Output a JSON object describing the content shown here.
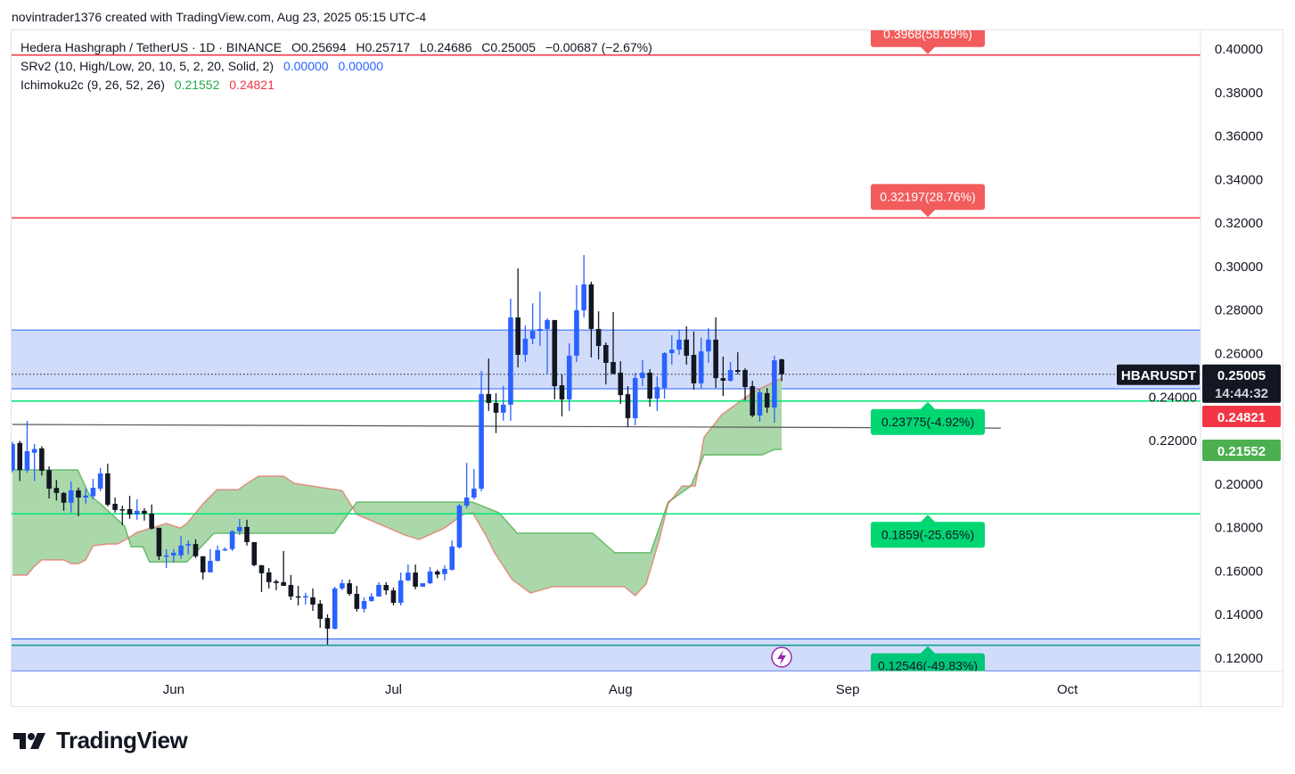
{
  "credit": "novintrader1376 created with TradingView.com, Aug 23, 2025 05:15 UTC-4",
  "legend": {
    "symbol": "Hedera Hashgraph / TetherUS · 1D · BINANCE",
    "open": "O0.25694",
    "high": "H0.25717",
    "low": "L0.24686",
    "close": "C0.25005",
    "change": "−0.00687 (−2.67%)",
    "srv2_label": "SRv2 (10, High/Low, 20, 10, 5, 2, 20, Solid, 2)",
    "srv2_v1": "0.00000",
    "srv2_v2": "0.00000",
    "ichimoku_label": "Ichimoku2c (9, 26, 52, 26)",
    "ichimoku_v1": "0.21552",
    "ichimoku_v2": "0.24821"
  },
  "logo": {
    "text": "TradingView"
  },
  "colors": {
    "up": "#2962ff",
    "down": "#131722",
    "cloud": "#a5d6a7",
    "span_a": "#66bb6a",
    "span_b": "#ef5350",
    "resistance": "#f23645",
    "support": "#00e676",
    "zone": "#d1dcfb",
    "zone_edge": "#2962ff",
    "trend": "#131722"
  },
  "chart_data": {
    "type": "candlestick",
    "title": "HBARUSDT 1D",
    "ylim": [
      0.1137,
      0.41
    ],
    "y_ticks": [
      "0.40000",
      "0.38000",
      "0.36000",
      "0.34000",
      "0.32000",
      "0.30000",
      "0.28000",
      "0.26000",
      "0.24000",
      "0.22000",
      "0.20000",
      "0.18000",
      "0.16000",
      "0.14000",
      "0.12000"
    ],
    "x_ticks": [
      {
        "label": "Jun",
        "day": 22
      },
      {
        "label": "Jul",
        "day": 52
      },
      {
        "label": "Aug",
        "day": 83
      },
      {
        "label": "Sep",
        "day": 114
      },
      {
        "label": "Oct",
        "day": 144
      }
    ],
    "first_day": "May 10",
    "candles": [
      [
        0.206,
        0.219,
        0.205,
        0.218
      ],
      [
        0.2185,
        0.2195,
        0.201,
        0.206
      ],
      [
        0.206,
        0.2286,
        0.2048,
        0.2147
      ],
      [
        0.214,
        0.218,
        0.201,
        0.2157
      ],
      [
        0.216,
        0.217,
        0.2035,
        0.2057
      ],
      [
        0.206,
        0.2077,
        0.193,
        0.1975
      ],
      [
        0.1978,
        0.2015,
        0.192,
        0.1955
      ],
      [
        0.1955,
        0.1959,
        0.1873,
        0.191
      ],
      [
        0.191,
        0.2008,
        0.1865,
        0.1967
      ],
      [
        0.1967,
        0.198,
        0.1848,
        0.1934
      ],
      [
        0.1934,
        0.1975,
        0.1906,
        0.1943
      ],
      [
        0.194,
        0.202,
        0.1926,
        0.1979
      ],
      [
        0.1975,
        0.207,
        0.1963,
        0.2045
      ],
      [
        0.2045,
        0.209,
        0.1893,
        0.1901
      ],
      [
        0.1905,
        0.1934,
        0.1865,
        0.1877
      ],
      [
        0.188,
        0.1897,
        0.1807,
        0.1877
      ],
      [
        0.1881,
        0.1942,
        0.1836,
        0.1856
      ],
      [
        0.1856,
        0.1926,
        0.1832,
        0.1873
      ],
      [
        0.1873,
        0.1885,
        0.1828,
        0.186
      ],
      [
        0.186,
        0.1902,
        0.1787,
        0.1791
      ],
      [
        0.1795,
        0.1795,
        0.1647,
        0.1664
      ],
      [
        0.1664,
        0.1697,
        0.161,
        0.1668
      ],
      [
        0.1668,
        0.1697,
        0.1635,
        0.168
      ],
      [
        0.1668,
        0.1758,
        0.1652,
        0.1713
      ],
      [
        0.1713,
        0.1737,
        0.1672,
        0.172
      ],
      [
        0.172,
        0.1742,
        0.1656,
        0.1664
      ],
      [
        0.1664,
        0.1664,
        0.1557,
        0.159
      ],
      [
        0.159,
        0.1697,
        0.159,
        0.1643
      ],
      [
        0.1643,
        0.1713,
        0.164,
        0.1692
      ],
      [
        0.1692,
        0.1705,
        0.1688,
        0.1697
      ],
      [
        0.1697,
        0.1783,
        0.1688,
        0.1779
      ],
      [
        0.1779,
        0.1836,
        0.1762,
        0.1799
      ],
      [
        0.1799,
        0.1832,
        0.1713,
        0.1729
      ],
      [
        0.1729,
        0.1729,
        0.1618,
        0.1623
      ],
      [
        0.1623,
        0.1623,
        0.15,
        0.1586
      ],
      [
        0.159,
        0.161,
        0.1516,
        0.1545
      ],
      [
        0.1549,
        0.1557,
        0.1508,
        0.1541
      ],
      [
        0.1545,
        0.1688,
        0.1528,
        0.1528
      ],
      [
        0.1532,
        0.1578,
        0.1463,
        0.1479
      ],
      [
        0.148,
        0.1528,
        0.1438,
        0.1478
      ],
      [
        0.1478,
        0.1496,
        0.1442,
        0.1481
      ],
      [
        0.1475,
        0.1516,
        0.1413,
        0.1442
      ],
      [
        0.1446,
        0.1462,
        0.1335,
        0.1376
      ],
      [
        0.138,
        0.1397,
        0.1258,
        0.1331
      ],
      [
        0.1331,
        0.1524,
        0.1327,
        0.1516
      ],
      [
        0.1516,
        0.1557,
        0.1508,
        0.154
      ],
      [
        0.154,
        0.1557,
        0.1483,
        0.1491
      ],
      [
        0.1491,
        0.1528,
        0.141,
        0.1422
      ],
      [
        0.1422,
        0.1475,
        0.1405,
        0.1458
      ],
      [
        0.1458,
        0.1495,
        0.1455,
        0.1479
      ],
      [
        0.1479,
        0.1545,
        0.1479,
        0.1532
      ],
      [
        0.1532,
        0.1545,
        0.1487,
        0.1507
      ],
      [
        0.1507,
        0.152,
        0.1438,
        0.145
      ],
      [
        0.145,
        0.1589,
        0.1438,
        0.1553
      ],
      [
        0.1553,
        0.1626,
        0.1549,
        0.1589
      ],
      [
        0.1589,
        0.1626,
        0.1512,
        0.1524
      ],
      [
        0.1524,
        0.154,
        0.1524,
        0.154
      ],
      [
        0.154,
        0.1614,
        0.1536,
        0.1594
      ],
      [
        0.1594,
        0.1602,
        0.1563,
        0.158
      ],
      [
        0.1582,
        0.1622,
        0.1553,
        0.1606
      ],
      [
        0.1602,
        0.1737,
        0.1598,
        0.1709
      ],
      [
        0.1705,
        0.1905,
        0.1699,
        0.1897
      ],
      [
        0.1897,
        0.2093,
        0.1885,
        0.1934
      ],
      [
        0.1934,
        0.2065,
        0.1925,
        0.1975
      ],
      [
        0.1975,
        0.2516,
        0.1963,
        0.241
      ],
      [
        0.241,
        0.2573,
        0.2332,
        0.2369
      ],
      [
        0.2369,
        0.2414,
        0.223,
        0.2324
      ],
      [
        0.2324,
        0.2447,
        0.2287,
        0.2361
      ],
      [
        0.2361,
        0.2848,
        0.2287,
        0.2762
      ],
      [
        0.2762,
        0.2987,
        0.2532,
        0.259
      ],
      [
        0.259,
        0.2725,
        0.2557,
        0.2664
      ],
      [
        0.2664,
        0.2827,
        0.2639,
        0.27
      ],
      [
        0.27,
        0.2881,
        0.2631,
        0.2709
      ],
      [
        0.2709,
        0.2758,
        0.25,
        0.275
      ],
      [
        0.275,
        0.275,
        0.2385,
        0.2446
      ],
      [
        0.245,
        0.25,
        0.2307,
        0.2385
      ],
      [
        0.2385,
        0.2643,
        0.2332,
        0.2586
      ],
      [
        0.2586,
        0.291,
        0.2557,
        0.2795
      ],
      [
        0.2795,
        0.3049,
        0.2762,
        0.2914
      ],
      [
        0.2914,
        0.2926,
        0.2578,
        0.2709
      ],
      [
        0.2709,
        0.279,
        0.2569,
        0.2631
      ],
      [
        0.2635,
        0.2647,
        0.2454,
        0.2553
      ],
      [
        0.2557,
        0.2787,
        0.25,
        0.2504
      ],
      [
        0.2508,
        0.2561,
        0.2365,
        0.2405
      ],
      [
        0.2409,
        0.2446,
        0.2258,
        0.2299
      ],
      [
        0.2299,
        0.2508,
        0.2266,
        0.2483
      ],
      [
        0.2483,
        0.2565,
        0.2446,
        0.2508
      ],
      [
        0.2508,
        0.2524,
        0.2352,
        0.2389
      ],
      [
        0.2389,
        0.2491,
        0.2332,
        0.2442
      ],
      [
        0.2438,
        0.2602,
        0.2389,
        0.2598
      ],
      [
        0.2598,
        0.268,
        0.2545,
        0.2614
      ],
      [
        0.2614,
        0.2705,
        0.259,
        0.266
      ],
      [
        0.266,
        0.2721,
        0.2545,
        0.2586
      ],
      [
        0.259,
        0.2697,
        0.243,
        0.2459
      ],
      [
        0.2459,
        0.2668,
        0.2434,
        0.2606
      ],
      [
        0.2606,
        0.2713,
        0.2553,
        0.266
      ],
      [
        0.266,
        0.2762,
        0.2438,
        0.2483
      ],
      [
        0.2483,
        0.2582,
        0.2401,
        0.2471
      ],
      [
        0.2471,
        0.2557,
        0.2467,
        0.252
      ],
      [
        0.252,
        0.2602,
        0.25,
        0.2512
      ],
      [
        0.252,
        0.2528,
        0.2381,
        0.2442
      ],
      [
        0.2446,
        0.2471,
        0.2303,
        0.2311
      ],
      [
        0.2311,
        0.243,
        0.2283,
        0.2418
      ],
      [
        0.2414,
        0.2438,
        0.2324,
        0.2348
      ],
      [
        0.2348,
        0.2586,
        0.2278,
        0.2565
      ],
      [
        0.25694,
        0.25717,
        0.24686,
        0.25005
      ]
    ],
    "ichimoku_span_a": [
      [
        0,
        0.2061
      ],
      [
        8.9,
        0.2061
      ],
      [
        10.5,
        0.1946
      ],
      [
        12,
        0.1905
      ],
      [
        15.3,
        0.1803
      ],
      [
        16.2,
        0.1708
      ],
      [
        17.8,
        0.1708
      ],
      [
        18.7,
        0.1638
      ],
      [
        23.8,
        0.1638
      ],
      [
        27.5,
        0.177
      ],
      [
        43.9,
        0.177
      ],
      [
        47,
        0.1913
      ],
      [
        62.8,
        0.1913
      ],
      [
        66.4,
        0.1864
      ],
      [
        68.9,
        0.177
      ],
      [
        79.2,
        0.177
      ],
      [
        82.2,
        0.168
      ],
      [
        87.1,
        0.168
      ],
      [
        89.5,
        0.1913
      ],
      [
        92.6,
        0.1987
      ],
      [
        94.4,
        0.213
      ],
      [
        102.3,
        0.213
      ],
      [
        104,
        0.2155
      ],
      [
        105,
        0.21552
      ]
    ],
    "ichimoku_span_b": [
      [
        0,
        0.1577
      ],
      [
        2,
        0.1577
      ],
      [
        3,
        0.1618
      ],
      [
        4,
        0.1647
      ],
      [
        7,
        0.1647
      ],
      [
        8,
        0.163
      ],
      [
        9,
        0.163
      ],
      [
        10,
        0.1647
      ],
      [
        11,
        0.1712
      ],
      [
        13,
        0.172
      ],
      [
        14.3,
        0.172
      ],
      [
        15.3,
        0.1737
      ],
      [
        17,
        0.1774
      ],
      [
        19,
        0.1794
      ],
      [
        21,
        0.1815
      ],
      [
        22.9,
        0.1794
      ],
      [
        23.8,
        0.1815
      ],
      [
        26,
        0.1905
      ],
      [
        27.9,
        0.197
      ],
      [
        30.8,
        0.197
      ],
      [
        32,
        0.1999
      ],
      [
        33.6,
        0.2032
      ],
      [
        37,
        0.2032
      ],
      [
        38.5,
        0.1999
      ],
      [
        45,
        0.1966
      ],
      [
        47,
        0.1856
      ],
      [
        53.6,
        0.1761
      ],
      [
        55.5,
        0.1741
      ],
      [
        59,
        0.1794
      ],
      [
        61.5,
        0.1856
      ],
      [
        62.8,
        0.1864
      ],
      [
        64.6,
        0.1761
      ],
      [
        65.8,
        0.168
      ],
      [
        68.2,
        0.1557
      ],
      [
        70.7,
        0.1495
      ],
      [
        73.7,
        0.1524
      ],
      [
        83.5,
        0.1524
      ],
      [
        85,
        0.1483
      ],
      [
        86.5,
        0.1536
      ],
      [
        88.3,
        0.1741
      ],
      [
        89.5,
        0.1905
      ],
      [
        91.4,
        0.1987
      ],
      [
        93.2,
        0.1987
      ],
      [
        94.4,
        0.2212
      ],
      [
        96.8,
        0.2315
      ],
      [
        99.3,
        0.2376
      ],
      [
        101,
        0.2417
      ],
      [
        105,
        0.24821
      ]
    ],
    "zones": [
      [
        0.2434,
        0.2704
      ],
      [
        0.1137,
        0.1284
      ]
    ],
    "trendline": {
      "from": [
        0,
        0.227
      ],
      "to": [
        134.9,
        0.2253
      ]
    },
    "levels": [
      {
        "price": 0.3968,
        "label": "0.3968(58.69%)",
        "kind": "resistance",
        "side": "above"
      },
      {
        "price": 0.32197,
        "label": "0.32197(28.76%)",
        "kind": "resistance",
        "side": "above"
      },
      {
        "price": 0.23775,
        "label": "0.23775(-4.92%)",
        "kind": "support",
        "side": "below"
      },
      {
        "price": 0.1859,
        "label": "0.1859(-25.65%)",
        "kind": "support",
        "side": "below"
      },
      {
        "price": 0.12546,
        "label": "0.12546(-49.83%)",
        "kind": "support2",
        "side": "below"
      }
    ],
    "last_price": {
      "symbol": "HBARUSDT",
      "price": "0.25005",
      "countdown": "14:44:32",
      "value": 0.25005
    },
    "span_b_tag": {
      "label": "0.24821",
      "value": 0.24821
    },
    "span_a_tag": {
      "label": "0.21552",
      "value": 0.21552
    }
  }
}
